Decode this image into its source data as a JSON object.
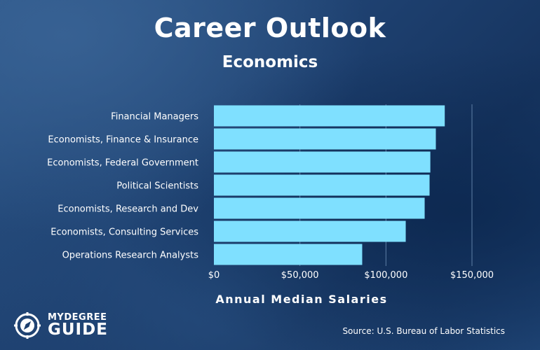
{
  "header": {
    "title": "Career Outlook",
    "subtitle": "Economics"
  },
  "chart_data": {
    "type": "bar",
    "orientation": "horizontal",
    "categories": [
      "Financial Managers",
      "Economists, Finance & Insurance",
      "Economists, Federal Government",
      "Political Scientists",
      "Economists, Research and Dev",
      "Economists, Consulting Services",
      "Operations Research Analysts"
    ],
    "values": [
      134180,
      129000,
      125800,
      125350,
      122500,
      111500,
      86200
    ],
    "xlim": [
      0,
      150000
    ],
    "xticks": [
      {
        "value": 0,
        "label": "$0"
      },
      {
        "value": 50000,
        "label": "$50,000"
      },
      {
        "value": 100000,
        "label": "$100,000"
      },
      {
        "value": 150000,
        "label": "$150,000"
      }
    ],
    "xlabel": "Annual Median Salaries",
    "ylabel": "",
    "grid": true,
    "bar_color": "#7fe0ff",
    "grid_color": "#5e7fa6"
  },
  "footer": {
    "source": "Source: U.S. Bureau of Labor Statistics"
  },
  "logo": {
    "line1": "MYDEGREE",
    "line2": "GUIDE",
    "icon": "compass-icon"
  }
}
